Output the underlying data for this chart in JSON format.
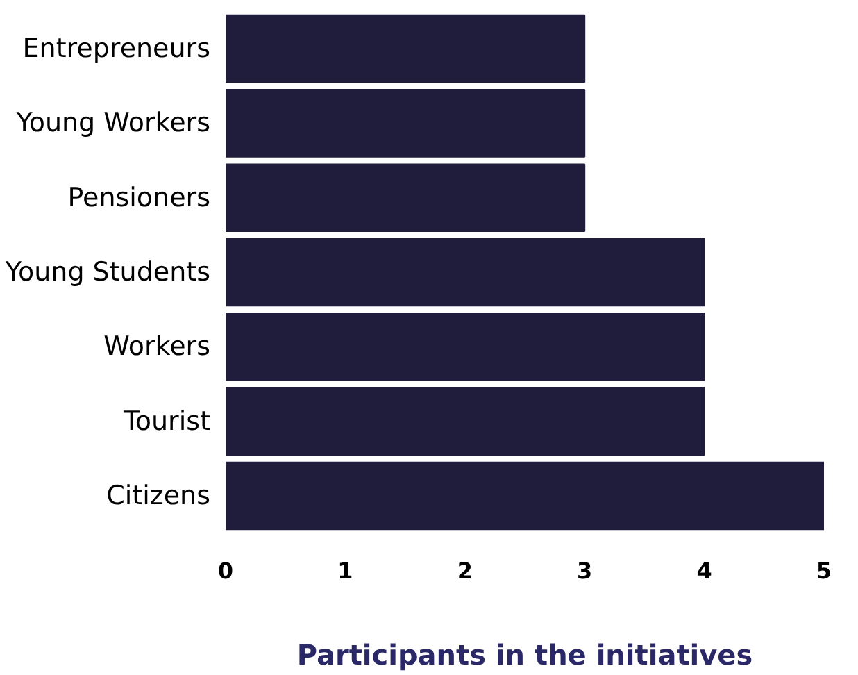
{
  "chart_data": {
    "type": "bar",
    "orientation": "horizontal",
    "xlabel": "Participants in the initiatives",
    "categories": [
      "Entrepreneurs",
      "Young Workers",
      "Pensioners",
      "Young Students",
      "Workers",
      "Tourist",
      "Citizens"
    ],
    "values": [
      3,
      3,
      3,
      4,
      4,
      4,
      5
    ],
    "color": "#1f1d3b",
    "xlim": [
      0,
      5
    ],
    "xticks": [
      0,
      1,
      2,
      3,
      4,
      5
    ],
    "grid": false
  }
}
